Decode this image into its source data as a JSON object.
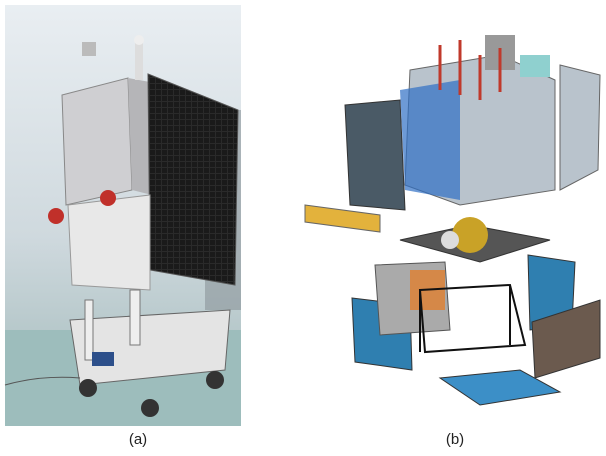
{
  "captions": {
    "a": "(a)",
    "b": "(b)"
  }
}
